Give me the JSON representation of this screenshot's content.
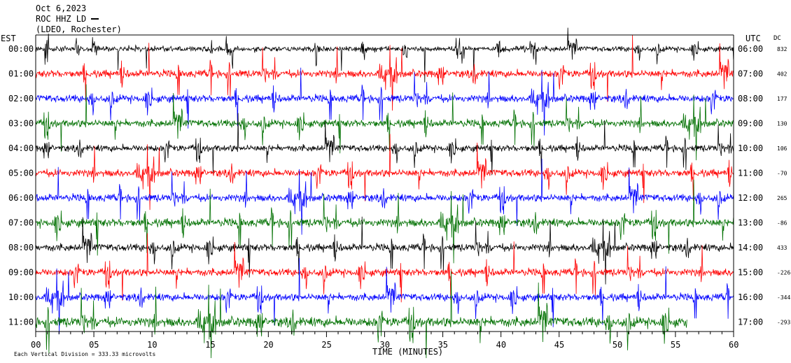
{
  "header": {
    "date": "Oct 6,2023",
    "station": "ROC HHZ LD",
    "network": "(LDEO, Rochester)"
  },
  "labels": {
    "left_tz": "EST",
    "right_tz": "UTC",
    "dc": "DC",
    "footer": "Each Vertical Division = 333.33 microvolts"
  },
  "colors": {
    "trace_cycle": [
      "#000000",
      "#ff0000",
      "#0000ff",
      "#007000"
    ],
    "axis": "#000000",
    "background": "#ffffff"
  },
  "chart_data": {
    "type": "line",
    "description_scale": "333.33 microvolts per vertical division",
    "xlabel": "TIME (MINUTES)",
    "xlim": [
      0,
      60
    ],
    "x_ticks": [
      "00",
      "05",
      "10",
      "15",
      "20",
      "25",
      "30",
      "35",
      "40",
      "45",
      "50",
      "55",
      "60"
    ],
    "rows": [
      {
        "est": "00:00",
        "utc": "06:00",
        "dc": "832",
        "color": "#000000",
        "amp": 0.7
      },
      {
        "est": "01:00",
        "utc": "07:00",
        "dc": "402",
        "color": "#ff0000",
        "amp": 1.0
      },
      {
        "est": "02:00",
        "utc": "08:00",
        "dc": "177",
        "color": "#0000ff",
        "amp": 1.0
      },
      {
        "est": "03:00",
        "utc": "09:00",
        "dc": "130",
        "color": "#007000",
        "amp": 1.0
      },
      {
        "est": "04:00",
        "utc": "10:00",
        "dc": "106",
        "color": "#000000",
        "amp": 0.9
      },
      {
        "est": "05:00",
        "utc": "11:00",
        "dc": "-70",
        "color": "#ff0000",
        "amp": 1.0
      },
      {
        "est": "06:00",
        "utc": "12:00",
        "dc": "265",
        "color": "#0000ff",
        "amp": 1.0
      },
      {
        "est": "07:00",
        "utc": "13:00",
        "dc": "-86",
        "color": "#007000",
        "amp": 1.1
      },
      {
        "est": "08:00",
        "utc": "14:00",
        "dc": "433",
        "color": "#000000",
        "amp": 1.0
      },
      {
        "est": "09:00",
        "utc": "15:00",
        "dc": "-226",
        "color": "#ff0000",
        "amp": 1.0
      },
      {
        "est": "10:00",
        "utc": "16:00",
        "dc": "-344",
        "color": "#0000ff",
        "amp": 1.0
      },
      {
        "est": "11:00",
        "utc": "17:00",
        "dc": "-293",
        "color": "#007000",
        "amp": 1.3,
        "end_minute": 56
      }
    ]
  }
}
